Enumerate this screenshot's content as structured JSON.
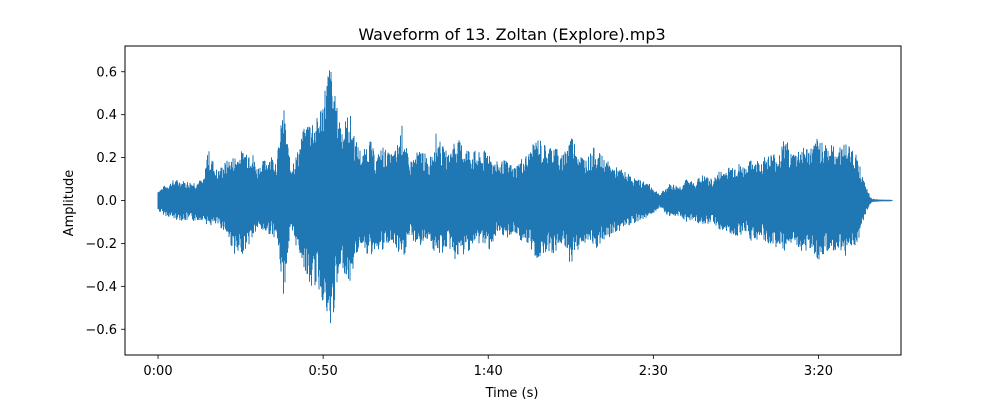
{
  "chart_data": {
    "type": "line",
    "title": "Waveform of 13. Zoltan (Explore).mp3",
    "xlabel": "Time (s)",
    "ylabel": "Amplitude",
    "xlim": [
      -10,
      225
    ],
    "ylim": [
      -0.72,
      0.72
    ],
    "x_ticks": [
      {
        "value": 0,
        "label": "0:00"
      },
      {
        "value": 50,
        "label": "0:50"
      },
      {
        "value": 100,
        "label": "1:40"
      },
      {
        "value": 150,
        "label": "2:30"
      },
      {
        "value": 200,
        "label": "3:20"
      }
    ],
    "y_ticks": [
      {
        "value": -0.6,
        "label": "−0.6"
      },
      {
        "value": -0.4,
        "label": "−0.4"
      },
      {
        "value": -0.2,
        "label": "−0.2"
      },
      {
        "value": 0.0,
        "label": "0.0"
      },
      {
        "value": 0.2,
        "label": "0.2"
      },
      {
        "value": 0.4,
        "label": "0.4"
      },
      {
        "value": 0.6,
        "label": "0.6"
      }
    ],
    "grid": false,
    "series": [
      {
        "color": "#1f77b4",
        "envelope": {
          "time": [
            0,
            2,
            5,
            10,
            14,
            15,
            18,
            20,
            24,
            28,
            30,
            34,
            36,
            38,
            40,
            42,
            44,
            46,
            48,
            50,
            52,
            54,
            56,
            58,
            60,
            62,
            64,
            66,
            68,
            70,
            72,
            74,
            76,
            78,
            80,
            82,
            84,
            86,
            88,
            90,
            92,
            95,
            98,
            100,
            102,
            105,
            108,
            110,
            112,
            115,
            118,
            120,
            122,
            125,
            128,
            130,
            132,
            135,
            138,
            140,
            142,
            145,
            148,
            150,
            152,
            155,
            158,
            160,
            162,
            165,
            168,
            170,
            172,
            175,
            178,
            180,
            182,
            185,
            188,
            190,
            192,
            195,
            198,
            200,
            202,
            205,
            208,
            210,
            212,
            214,
            216,
            218,
            220,
            222
          ],
          "upper": [
            0.05,
            0.07,
            0.1,
            0.09,
            0.1,
            0.25,
            0.14,
            0.18,
            0.22,
            0.26,
            0.16,
            0.22,
            0.2,
            0.45,
            0.18,
            0.22,
            0.33,
            0.4,
            0.38,
            0.5,
            0.66,
            0.45,
            0.36,
            0.42,
            0.28,
            0.22,
            0.3,
            0.2,
            0.26,
            0.22,
            0.24,
            0.36,
            0.18,
            0.22,
            0.25,
            0.18,
            0.32,
            0.26,
            0.22,
            0.3,
            0.27,
            0.24,
            0.22,
            0.25,
            0.18,
            0.19,
            0.16,
            0.2,
            0.22,
            0.3,
            0.25,
            0.28,
            0.2,
            0.32,
            0.22,
            0.2,
            0.25,
            0.2,
            0.16,
            0.15,
            0.13,
            0.1,
            0.09,
            0.06,
            0.03,
            0.08,
            0.07,
            0.1,
            0.09,
            0.12,
            0.1,
            0.14,
            0.15,
            0.18,
            0.16,
            0.2,
            0.19,
            0.22,
            0.23,
            0.3,
            0.22,
            0.26,
            0.25,
            0.3,
            0.28,
            0.25,
            0.27,
            0.26,
            0.2,
            0.08,
            0.01,
            0.005,
            0.003,
            0.003
          ],
          "lower": [
            -0.05,
            -0.07,
            -0.09,
            -0.1,
            -0.09,
            -0.12,
            -0.12,
            -0.14,
            -0.28,
            -0.2,
            -0.14,
            -0.16,
            -0.18,
            -0.45,
            -0.16,
            -0.22,
            -0.3,
            -0.42,
            -0.4,
            -0.48,
            -0.66,
            -0.44,
            -0.32,
            -0.4,
            -0.26,
            -0.2,
            -0.28,
            -0.22,
            -0.25,
            -0.2,
            -0.23,
            -0.3,
            -0.18,
            -0.2,
            -0.22,
            -0.17,
            -0.27,
            -0.25,
            -0.22,
            -0.28,
            -0.27,
            -0.22,
            -0.2,
            -0.24,
            -0.18,
            -0.18,
            -0.16,
            -0.19,
            -0.22,
            -0.28,
            -0.23,
            -0.26,
            -0.2,
            -0.3,
            -0.21,
            -0.2,
            -0.24,
            -0.2,
            -0.16,
            -0.14,
            -0.12,
            -0.1,
            -0.08,
            -0.06,
            -0.03,
            -0.08,
            -0.07,
            -0.1,
            -0.09,
            -0.12,
            -0.1,
            -0.14,
            -0.15,
            -0.17,
            -0.15,
            -0.2,
            -0.18,
            -0.21,
            -0.22,
            -0.28,
            -0.2,
            -0.24,
            -0.23,
            -0.28,
            -0.26,
            -0.24,
            -0.26,
            -0.25,
            -0.19,
            -0.08,
            -0.01,
            -0.005,
            -0.003,
            -0.003
          ]
        }
      }
    ]
  }
}
